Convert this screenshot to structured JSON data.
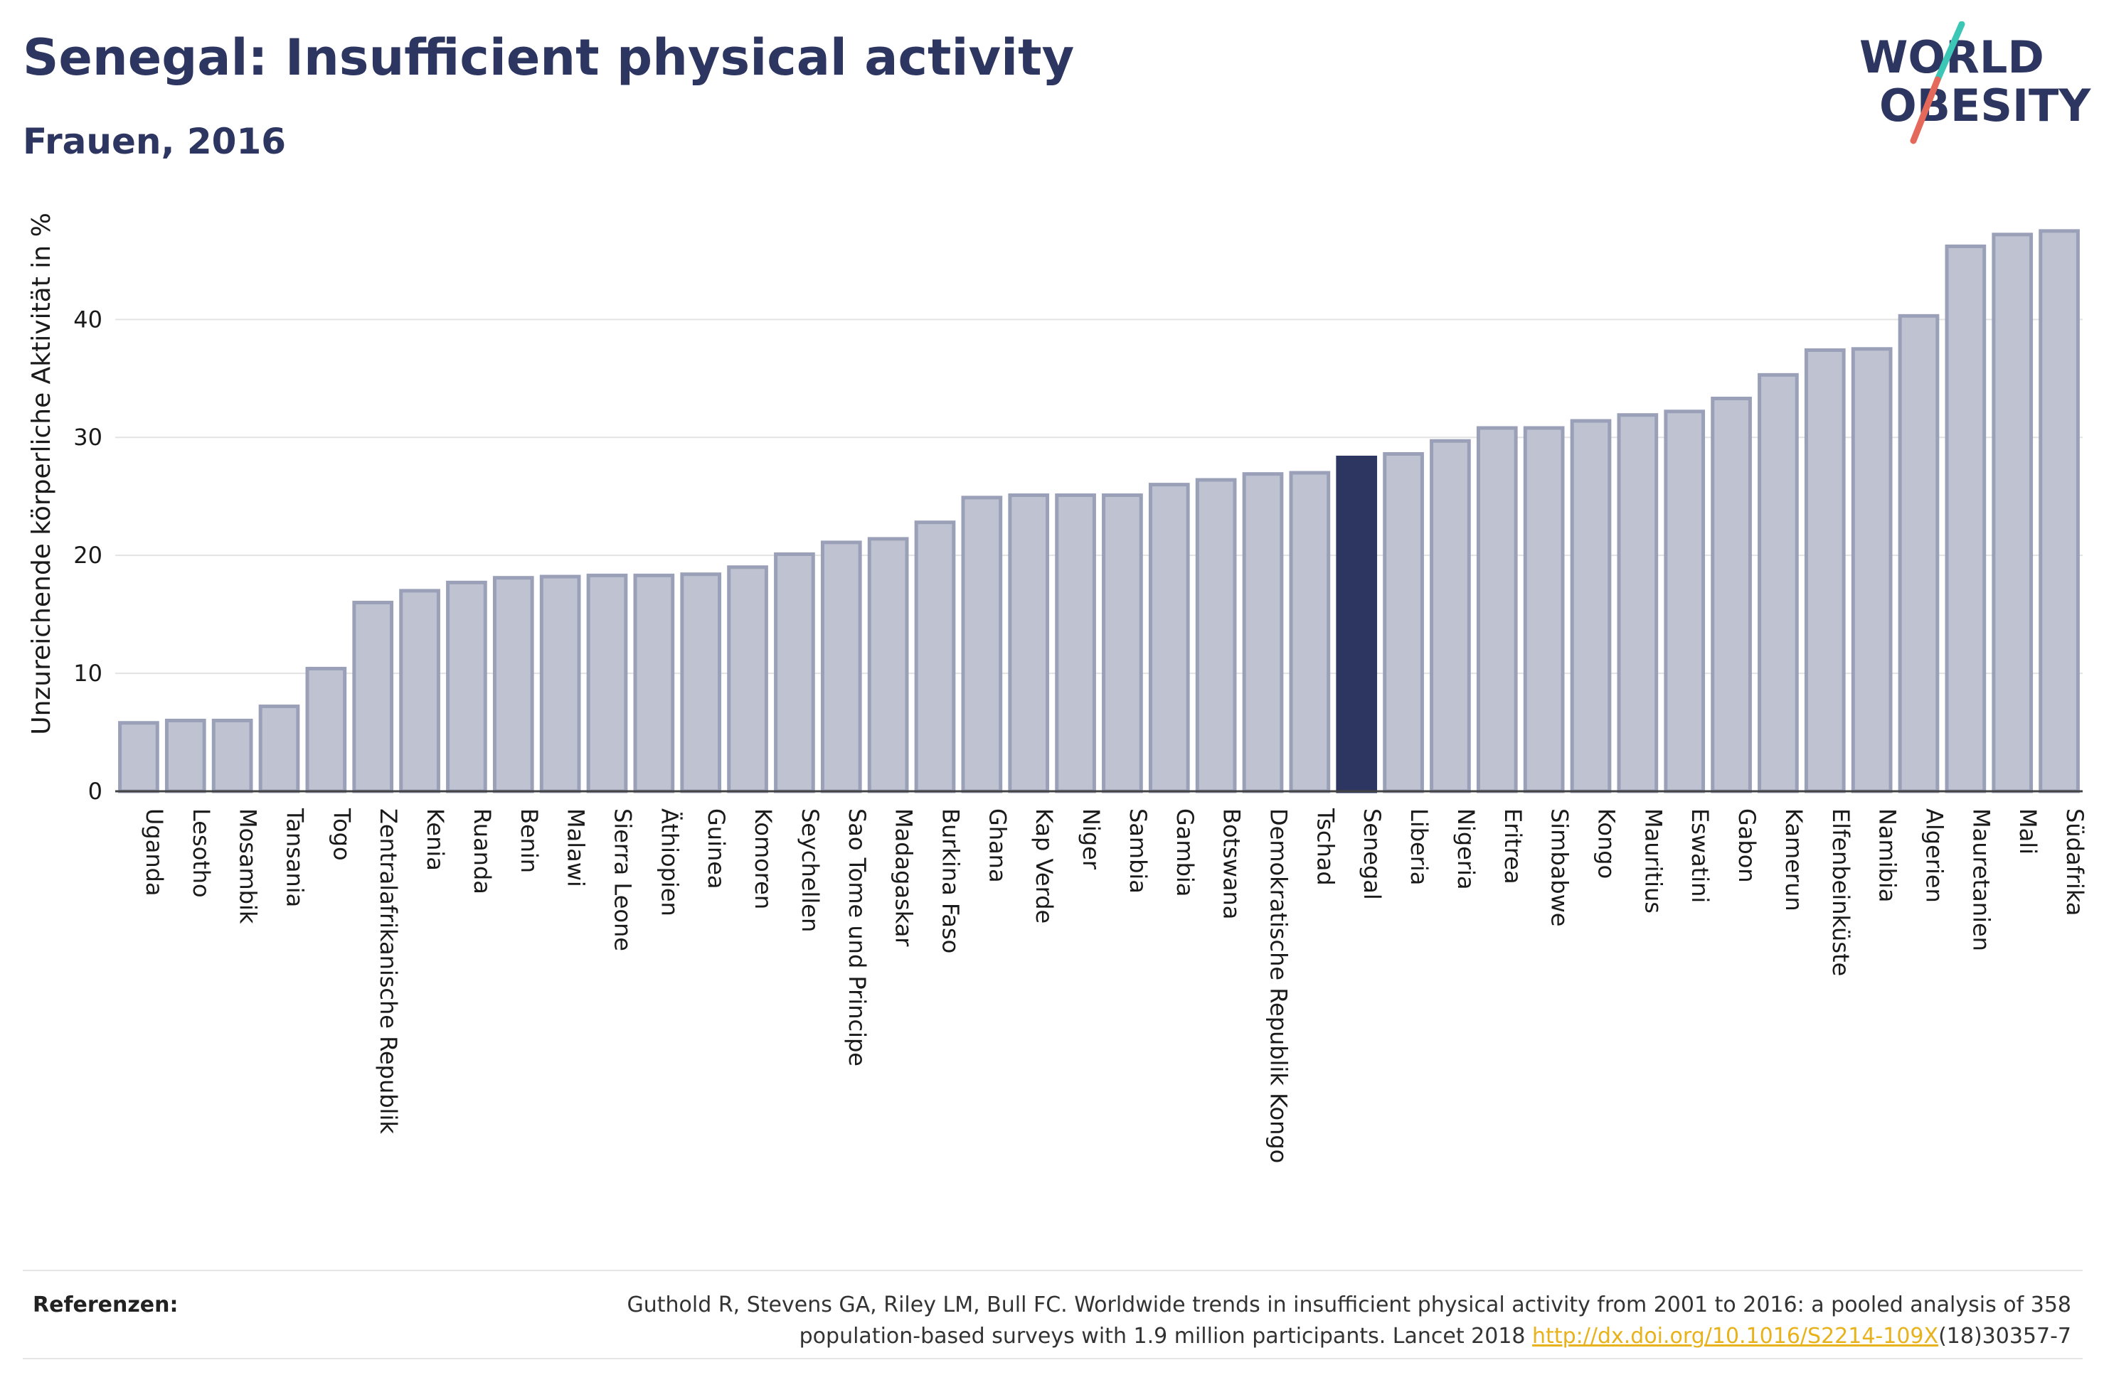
{
  "header": {
    "title": "Senegal: Insufficient physical activity",
    "subtitle": "Frauen, 2016"
  },
  "logo": {
    "line1": "WORLD",
    "line2": "OBESITY",
    "colors": {
      "text": "#2d3561",
      "slash_teal": "#3cc6b5",
      "slash_coral": "#e4695b"
    }
  },
  "references": {
    "label": "Referenzen:",
    "text_line1": "Guthold R, Stevens GA, Riley LM, Bull FC. Worldwide trends in insufficient physical activity from 2001 to 2016: a pooled analysis of 358",
    "text_line2_prefix": "population-based surveys with 1.9 million participants. Lancet 2018 ",
    "link_text": "http://dx.doi.org/10.1016/S2214-109X",
    "text_line2_suffix": "(18)30357-7"
  },
  "colors": {
    "bar_default": "#bfc3d1",
    "bar_stroke": "#9aa0b8",
    "bar_highlight": "#2d3561",
    "axis_text": "#1a1a1a",
    "grid": "#e3e3e3"
  },
  "chart_data": {
    "type": "bar",
    "title": "Senegal: Insufficient physical activity",
    "subtitle": "Frauen, 2016",
    "xlabel": "",
    "ylabel": "Unzureichende körperliche Aktivität in %",
    "ylim": [
      0,
      49
    ],
    "yticks": [
      0,
      10,
      20,
      30,
      40
    ],
    "grid": true,
    "highlight": "Senegal",
    "categories": [
      "Uganda",
      "Lesotho",
      "Mosambik",
      "Tansania",
      "Togo",
      "Zentralafrikanische Republik",
      "Kenia",
      "Ruanda",
      "Benin",
      "Malawi",
      "Sierra Leone",
      "Äthiopien",
      "Guinea",
      "Komoren",
      "Seychellen",
      "Sao Tome und Principe",
      "Madagaskar",
      "Burkina Faso",
      "Ghana",
      "Kap Verde",
      "Niger",
      "Sambia",
      "Gambia",
      "Botswana",
      "Demokratische Republik Kongo",
      "Tschad",
      "Senegal",
      "Liberia",
      "Nigeria",
      "Eritrea",
      "Simbabwe",
      "Kongo",
      "Mauritius",
      "Eswatini",
      "Gabon",
      "Kamerun",
      "Elfenbeinküste",
      "Namibia",
      "Algerien",
      "Mauretanien",
      "Mali",
      "Südafrika"
    ],
    "values": [
      5.8,
      6.0,
      6.0,
      7.2,
      10.4,
      16.0,
      17.0,
      17.7,
      18.1,
      18.2,
      18.3,
      18.3,
      18.4,
      19.0,
      20.1,
      21.1,
      21.4,
      22.8,
      24.9,
      25.1,
      25.1,
      25.1,
      26.0,
      26.4,
      26.9,
      27.0,
      28.3,
      28.6,
      29.7,
      30.8,
      30.8,
      31.4,
      31.9,
      32.2,
      33.3,
      35.3,
      37.4,
      37.5,
      40.3,
      46.2,
      47.2,
      47.5
    ]
  }
}
